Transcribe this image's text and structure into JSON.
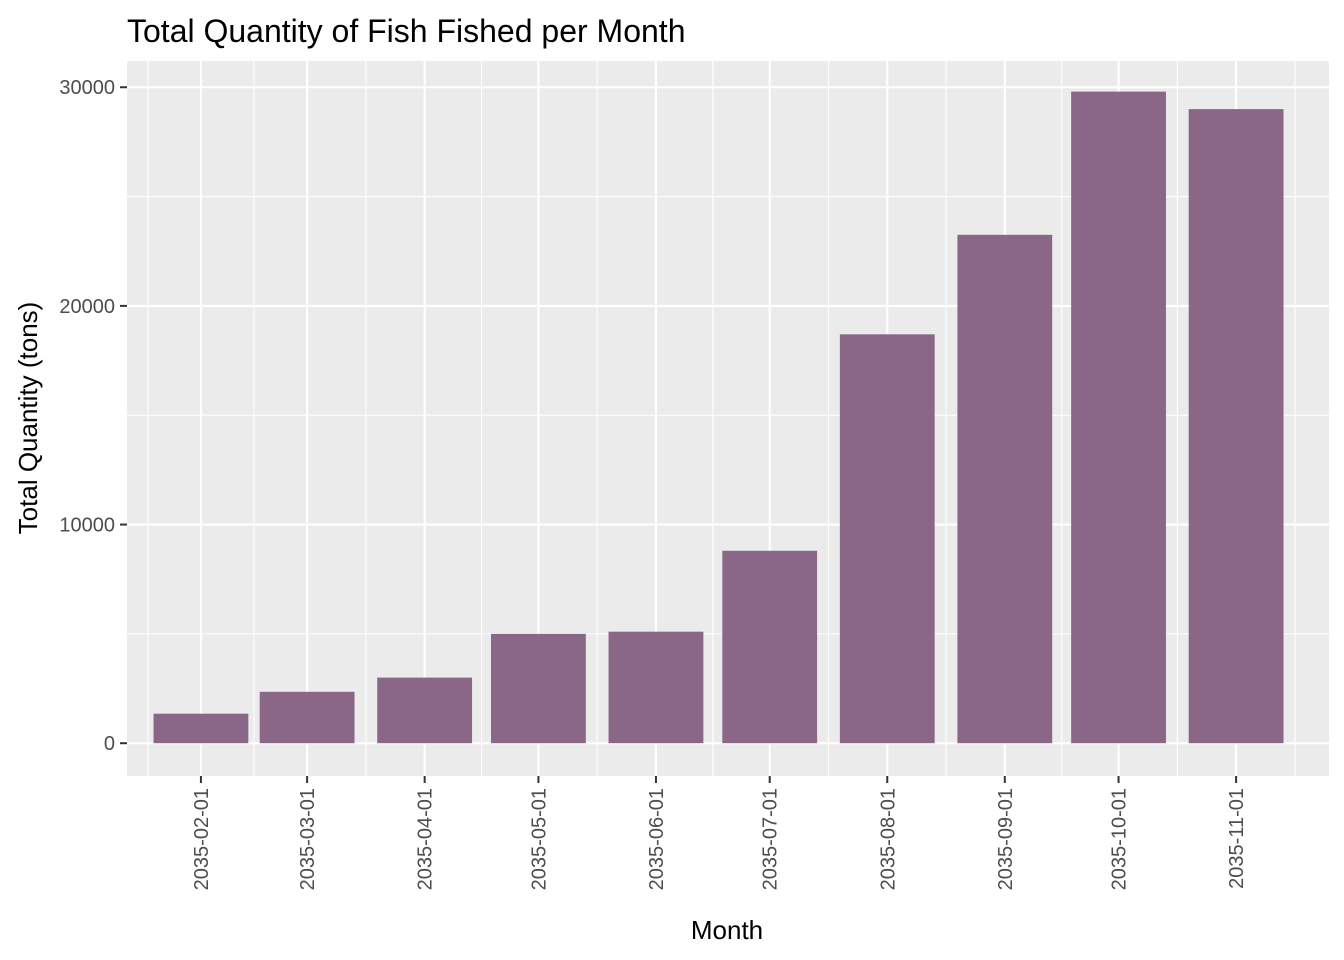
{
  "colors": {
    "panel_background": "#ebebeb",
    "grid": "#ffffff",
    "bar": "#8a6687",
    "tick": "#333333",
    "tick_label": "#4d4d4d",
    "text": "#000000"
  },
  "chart_data": {
    "type": "bar",
    "title": "Total Quantity of Fish Fished per Month",
    "xlabel": "Month",
    "ylabel": "Total Quantity (tons)",
    "categories": [
      "2035-02-01",
      "2035-03-01",
      "2035-04-01",
      "2035-05-01",
      "2035-06-01",
      "2035-07-01",
      "2035-08-01",
      "2035-09-01",
      "2035-10-01",
      "2035-11-01"
    ],
    "x_positions_days": [
      0,
      28,
      59,
      89,
      120,
      150,
      181,
      212,
      242,
      273
    ],
    "bar_width_days": 25,
    "values": [
      1350,
      2350,
      3000,
      5000,
      5100,
      8800,
      18700,
      23250,
      29800,
      29000
    ],
    "yticks": [
      0,
      10000,
      20000,
      30000
    ],
    "ylim": [
      -1500,
      31200
    ],
    "grid": true,
    "x_tick_rotation": "vertical"
  }
}
